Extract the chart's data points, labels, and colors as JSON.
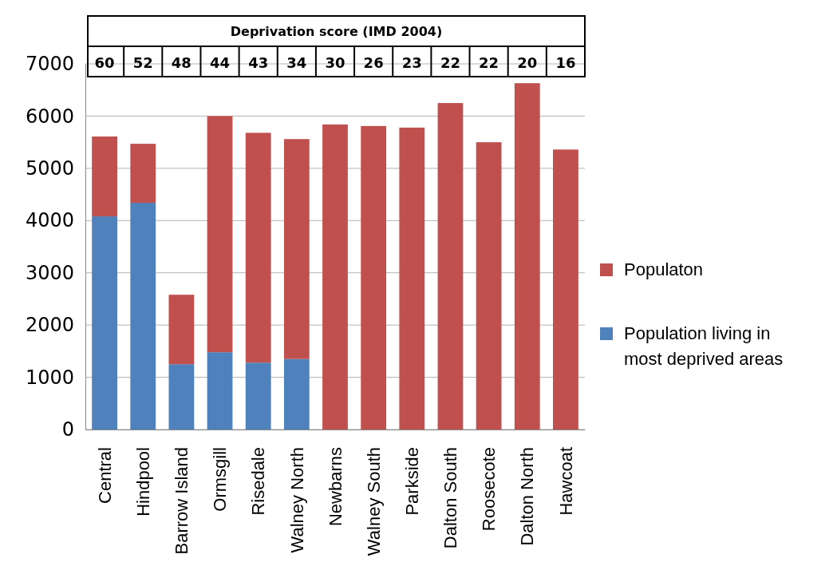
{
  "chart_data": {
    "type": "bar",
    "stacked": true,
    "categories": [
      "Central",
      "Hindpool",
      "Barrow Island",
      "Ormsgill",
      "Risedale",
      "Walney North",
      "Newbarns",
      "Walney South",
      "Parkside",
      "Dalton South",
      "Roosecote",
      "Dalton North",
      "Hawcoat"
    ],
    "series": [
      {
        "name": "Population living in most deprived areas",
        "color": "#4f81bd",
        "values": [
          4080,
          4340,
          1250,
          1480,
          1280,
          1350,
          null,
          null,
          null,
          null,
          null,
          null,
          null
        ]
      },
      {
        "name": "Populaton",
        "color": "#c0504d",
        "values": [
          1530,
          1130,
          1330,
          4520,
          4400,
          4210,
          5840,
          5810,
          5780,
          6250,
          5500,
          6630,
          5360
        ]
      }
    ],
    "ylim": [
      0,
      7000
    ],
    "yticks": [
      0,
      1000,
      2000,
      3000,
      4000,
      5000,
      6000,
      7000
    ],
    "grid": "y",
    "legend": "right",
    "annotations": [
      "Deprivation score (IMD 2004)",
      "60",
      "52",
      "48",
      "44",
      "43",
      "34",
      "30",
      "26",
      "23",
      "22",
      "22",
      "20",
      "16"
    ]
  }
}
